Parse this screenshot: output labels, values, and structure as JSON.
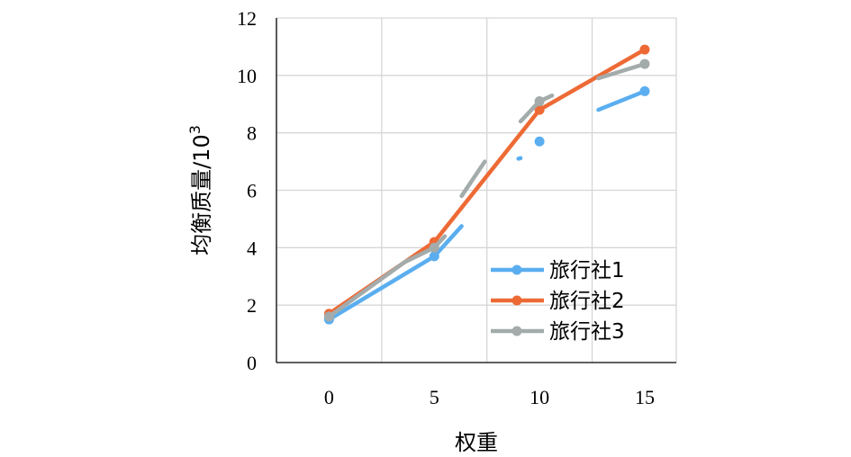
{
  "chart_data": {
    "type": "line",
    "xlabel": "权重",
    "ylabel": "均衡质量/10",
    "ylabel_sup": "3",
    "xlim": [
      -2.5,
      16.5
    ],
    "ylim": [
      0,
      12
    ],
    "xticks": [
      0,
      5,
      10,
      15
    ],
    "yticks": [
      0,
      2,
      4,
      6,
      8,
      10,
      12
    ],
    "grid": true,
    "legend_position": "bottom-right",
    "series": [
      {
        "name": "旅行社1",
        "color": "#5aaef0",
        "segments": [
          [
            [
              0,
              1.5
            ],
            [
              5,
              3.7
            ],
            [
              6.3,
              4.75
            ]
          ],
          [
            [
              9.0,
              7.1
            ],
            [
              9.1,
              7.12
            ]
          ],
          [
            [
              12.8,
              8.8
            ],
            [
              15,
              9.45
            ]
          ]
        ],
        "markers": [
          [
            0,
            1.5
          ],
          [
            5,
            3.7
          ],
          [
            10,
            7.7
          ],
          [
            15,
            9.45
          ]
        ]
      },
      {
        "name": "旅行社2",
        "color": "#ee6a35",
        "segments": [
          [
            [
              0,
              1.7
            ],
            [
              5,
              4.2
            ],
            [
              10,
              8.8
            ],
            [
              15,
              10.9
            ]
          ]
        ],
        "markers": [
          [
            0,
            1.7
          ],
          [
            5,
            4.2
          ],
          [
            10,
            8.8
          ],
          [
            15,
            10.9
          ]
        ]
      },
      {
        "name": "旅行社3",
        "color": "#a3abab",
        "segments": [
          [
            [
              0,
              1.6
            ],
            [
              3.6,
              3.5
            ],
            [
              5,
              4.0
            ],
            [
              5.5,
              4.4
            ]
          ],
          [
            [
              6.3,
              5.8
            ],
            [
              7.4,
              7.0
            ]
          ],
          [
            [
              9.1,
              8.4
            ],
            [
              10,
              9.1
            ],
            [
              10.6,
              9.3
            ]
          ],
          [
            [
              12.8,
              9.9
            ],
            [
              15,
              10.4
            ]
          ]
        ],
        "markers": [
          [
            0,
            1.6
          ],
          [
            5,
            4.0
          ],
          [
            10,
            9.1
          ],
          [
            15,
            10.4
          ]
        ]
      }
    ]
  }
}
